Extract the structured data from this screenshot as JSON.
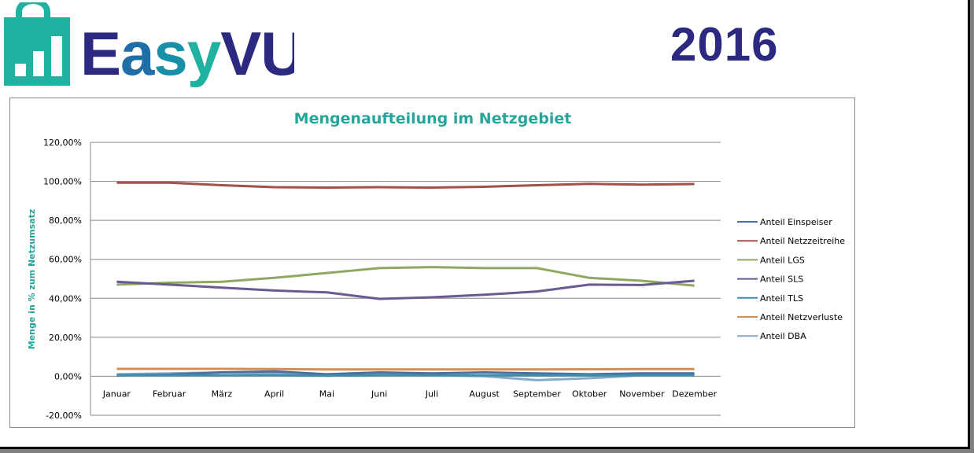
{
  "header": {
    "logo_text": "EasyVU",
    "year": "2016"
  },
  "colors": {
    "logo_teal": "#20b2a0",
    "logo_navy": "#2b2a80",
    "logo_blue": "#1e6fa8",
    "title_teal": "#26a69a"
  },
  "chart_data": {
    "type": "line",
    "title": "Mengenaufteilung im Netzgebiet",
    "xlabel": "",
    "ylabel": "Menge in % zum Netzumsatz",
    "ylim": [
      -20,
      120
    ],
    "yticks": [
      -20,
      0,
      20,
      40,
      60,
      80,
      100,
      120
    ],
    "ytick_labels": [
      "-20,00%",
      "0,00%",
      "20,00%",
      "40,00%",
      "60,00%",
      "80,00%",
      "100,00%",
      "120,00%"
    ],
    "grid": true,
    "legend_position": "right",
    "categories": [
      "Januar",
      "Februar",
      "März",
      "April",
      "Mai",
      "Juni",
      "Juli",
      "August",
      "September",
      "Oktober",
      "November",
      "Dezember"
    ],
    "series": [
      {
        "name": "Anteil Einspeiser",
        "color": "#4a6fa5",
        "values": [
          0.5,
          0.8,
          2.0,
          2.5,
          1.0,
          2.0,
          1.5,
          2.0,
          1.5,
          1.0,
          1.5,
          1.5
        ]
      },
      {
        "name": "Anteil Netzzeitreihe",
        "color": "#a0504d",
        "values": [
          99.3,
          99.3,
          98.0,
          97.0,
          96.8,
          97.0,
          96.8,
          97.2,
          98.0,
          98.7,
          98.3,
          98.6
        ]
      },
      {
        "name": "Anteil LGS",
        "color": "#8fa862",
        "values": [
          47.0,
          48.0,
          48.5,
          50.5,
          53.0,
          55.5,
          56.0,
          55.5,
          55.5,
          50.5,
          49.0,
          46.5
        ]
      },
      {
        "name": "Anteil SLS",
        "color": "#6a5a92",
        "values": [
          48.5,
          47.0,
          45.5,
          44.0,
          43.0,
          39.7,
          40.5,
          41.8,
          43.5,
          47.0,
          46.8,
          49.0
        ]
      },
      {
        "name": "Anteil TLS",
        "color": "#3d8ea8",
        "values": [
          0.5,
          0.5,
          0.5,
          0.5,
          0.3,
          0.5,
          0.5,
          0.5,
          0.5,
          0.5,
          0.5,
          0.5
        ]
      },
      {
        "name": "Anteil Netzverluste",
        "color": "#d18f55",
        "values": [
          3.8,
          3.8,
          3.8,
          3.7,
          3.5,
          3.5,
          3.5,
          3.5,
          3.5,
          3.6,
          3.7,
          3.7
        ]
      },
      {
        "name": "Anteil DBA",
        "color": "#87a9cc",
        "values": [
          1.0,
          1.5,
          2.0,
          1.5,
          0.2,
          1.5,
          0.5,
          0.0,
          -2.0,
          -1.0,
          0.5,
          1.0
        ]
      }
    ]
  }
}
